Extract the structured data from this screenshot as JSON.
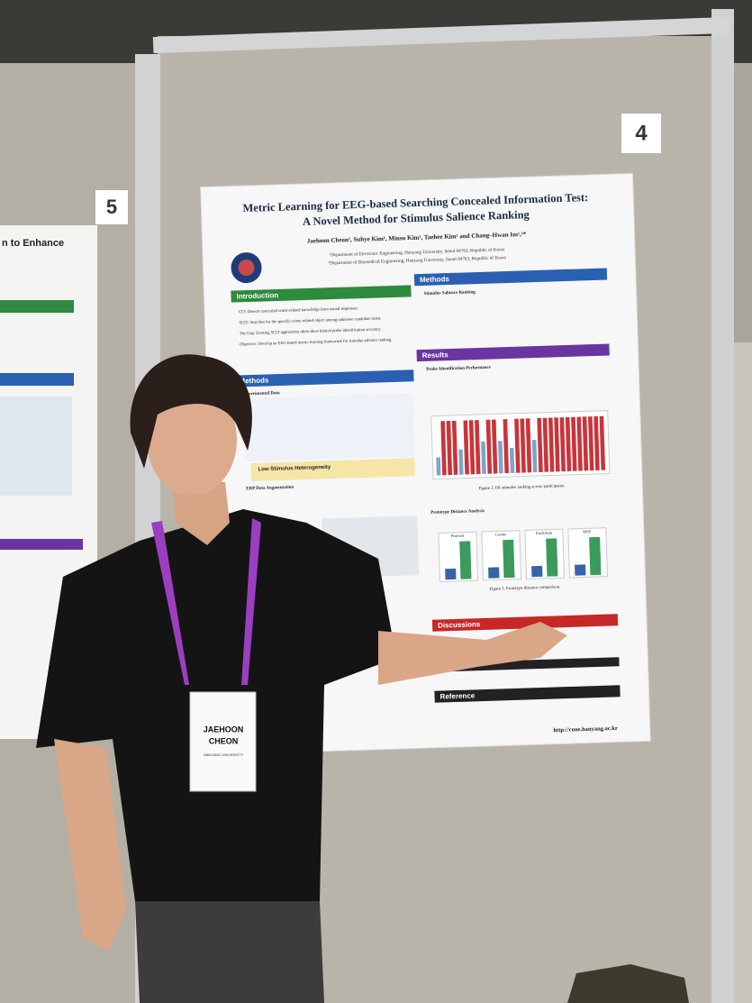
{
  "signs": {
    "left": "5",
    "right": "4"
  },
  "left_poster": {
    "title": "n to Enhance"
  },
  "poster": {
    "title": [
      "Metric Learning for EEG-based Searching Concealed Information Test:",
      "A Novel Method for Stimulus Salience Ranking"
    ],
    "authors": "Jaehoon Cheon¹, Suhye Kim¹, Minsu Kim¹, Taehee Kim¹ and Chang–Hwan Im¹,²*",
    "affiliations": [
      "¹Department of Electronic Engineering, Hanyang University, Seoul 04763, Republic of Korea",
      "²Department of Biomedical Engineering, Hanyang University, Seoul 04763, Republic of Korea"
    ],
    "sections": {
      "introduction": "Introduction",
      "methods_left": "Methods",
      "methods_right": "Methods",
      "results": "Results",
      "discussions": "Discussions",
      "reference": "Reference"
    },
    "intro_bullets": [
      "CIT: Detects concealed crime-related knowledge from neural responses.",
      "SCIT: Searches for the specific crime-related object among unknown candidate items.",
      "The Gap: Existing SCIT approaches often show limited probe identification accuracy.",
      "Objective: Develop an EEG-based metric learning framework for stimulus salience ranking."
    ],
    "subheads": {
      "salience": "Stimulus Salience Ranking",
      "probe": "Probe Identification Performance",
      "prototype": "Prototype Distance Analysis",
      "experimental": "Experimental Data",
      "erp": "ERP Data Augmentation"
    },
    "callout": "Low Stimulus Heterogeneity",
    "captions": [
      "Figure 2. PR stimulus ranking across participants.",
      "Figure 3. Prototype distance comparison."
    ],
    "panel_labels": [
      "Pearson",
      "Cosine",
      "Euclidean",
      "MSE"
    ],
    "url": "http://cone.hanyang.ac.kr"
  },
  "badge": {
    "first": "JAEHOON",
    "last": "CHEON",
    "org": "HANYANG UNIVERSITY"
  }
}
